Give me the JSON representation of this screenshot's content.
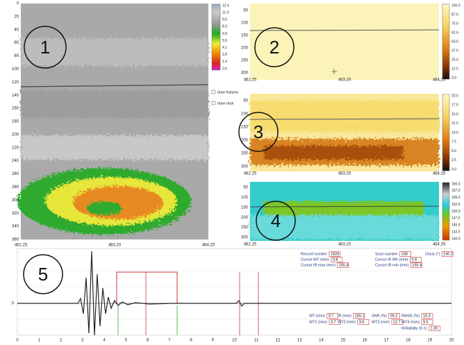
{
  "panel1": {
    "number": "1",
    "yticks": [
      "0",
      "20",
      "40",
      "60",
      "80",
      "100",
      "120",
      "140",
      "160",
      "180",
      "200",
      "220",
      "240",
      "260",
      "280",
      "300",
      "320",
      "340",
      "360"
    ],
    "xticks": [
      "462.25",
      "463.20",
      "464.25"
    ],
    "colorbar": [
      "12.4",
      "11.0",
      "9.6",
      "8.3",
      "6.9",
      "5.5",
      "4.1",
      "2.8",
      "1.4",
      "0.0"
    ],
    "checkboxes": [
      "draw features",
      "draw clock"
    ]
  },
  "panel2": {
    "number": "2",
    "yticks": [
      "50",
      "100",
      "150",
      "200",
      "250",
      "300"
    ],
    "xticks": [
      "462.25",
      "463.20",
      "464.25"
    ],
    "colorbar": [
      "100.0",
      "87.5",
      "75.0",
      "62.5",
      "50.0",
      "37.5",
      "25.0",
      "12.5",
      "0.0"
    ]
  },
  "panel3": {
    "number": "3",
    "yticks": [
      "50",
      "100",
      "150",
      "200",
      "250",
      "300"
    ],
    "xticks": [
      "462.25",
      "463.20",
      "464.25"
    ],
    "colorbar": [
      "20.0",
      "17.5",
      "15.0",
      "12.5",
      "10.0",
      "7.5",
      "5.0",
      "2.5",
      "0.0"
    ]
  },
  "panel4": {
    "number": "4",
    "yticks": [
      "50",
      "100",
      "150",
      "200",
      "250",
      "300"
    ],
    "xticks": [
      "462.25",
      "463.20",
      "464.25"
    ],
    "colorbar": [
      "160.0",
      "157.5",
      "155.0",
      "152.5",
      "150.0",
      "147.5",
      "145.0",
      "142.5",
      "140.0"
    ]
  },
  "panel5": {
    "number": "5",
    "ytick": "0",
    "xticks": [
      "0",
      "1",
      "2",
      "3",
      "4",
      "5",
      "6",
      "7",
      "8",
      "9",
      "10",
      "11",
      "12",
      "13",
      "14",
      "15",
      "16",
      "17",
      "18",
      "19",
      "20"
    ],
    "fields": [
      {
        "label": "Record number",
        "value": "1828"
      },
      {
        "label": "Scan number",
        "value": "108"
      },
      {
        "label": "Clock (°)",
        "value": "190.2"
      },
      {
        "label": "Cursor WT (mm)",
        "value": "9.8"
      },
      {
        "label": "Cursor IR max (mm)",
        "value": "155.4"
      },
      {
        "label": "Cursor IR RR (mm)",
        "value": "9.8"
      },
      {
        "label": "Cursor IR min (mm)",
        "value": "155.4"
      },
      {
        "label": "WT (mm)",
        "value": "9.7"
      },
      {
        "label": "IR (mm)",
        "value": "155.1"
      },
      {
        "label": "SNR (%)",
        "value": "99.2"
      },
      {
        "label": "RMSE (%)",
        "value": "10.3"
      },
      {
        "label": "WT1 (mm)",
        "value": "3.7"
      },
      {
        "label": "WT2 (mm)",
        "value": "9.6"
      },
      {
        "label": "WT3 (mm)",
        "value": "12.7"
      },
      {
        "label": "WT4 (mm)",
        "value": "9.5"
      },
      {
        "label": "Reliability (0-1)",
        "value": "1.00"
      }
    ]
  }
}
